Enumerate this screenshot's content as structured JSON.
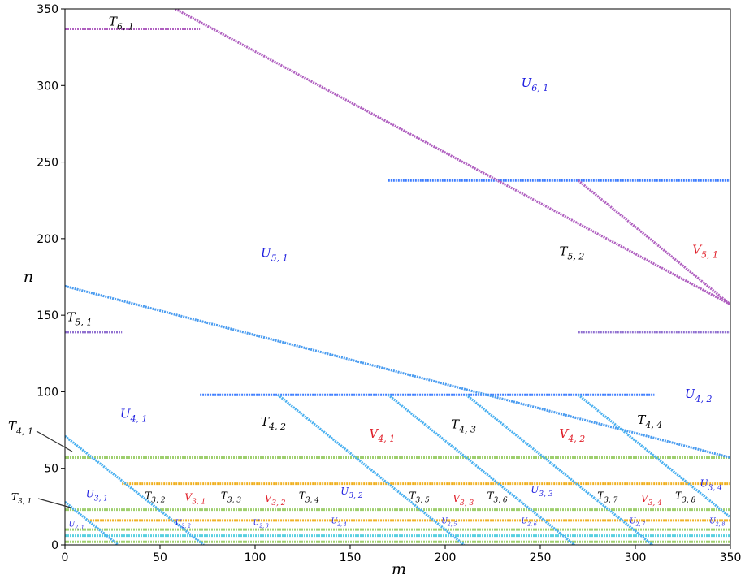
{
  "chart_data": {
    "type": "scatter",
    "xlabel": "m",
    "ylabel": "n",
    "xlim": [
      0,
      350
    ],
    "ylim": [
      0,
      350
    ],
    "x_ticks": [
      "0",
      "50",
      "100",
      "150",
      "200",
      "250",
      "300",
      "350"
    ],
    "y_ticks": [
      "0",
      "50",
      "100",
      "150",
      "200",
      "250",
      "300",
      "350"
    ],
    "colors": {
      "black_label": "#000000",
      "U_label": "#1f1fe0",
      "V_label": "#e0202a",
      "line_blue": "#3d7dff",
      "line_orange": "#f0b020",
      "line_green": "#9fcf6f",
      "line_cyan": "#5ad0e0",
      "line_purple": "#b060c0",
      "line_red": "#e05050"
    },
    "horizontal_segments": [
      {
        "y": 337,
        "x": [
          0,
          71
        ],
        "color": "#b060c0"
      },
      {
        "y": 238,
        "x": [
          170,
          350
        ],
        "color": "#3d7dff"
      },
      {
        "y": 139,
        "x": [
          0,
          30
        ],
        "color": "#9070d0"
      },
      {
        "y": 139,
        "x": [
          270,
          350
        ],
        "color": "#9070d0"
      },
      {
        "y": 98,
        "x": [
          71,
          310
        ],
        "color": "#3d7dff"
      },
      {
        "y": 57,
        "x": [
          0,
          350
        ],
        "color": "#9fcf6f"
      },
      {
        "y": 40,
        "x": [
          30,
          350
        ],
        "color": "#f0b020"
      },
      {
        "y": 23,
        "x": [
          0,
          350
        ],
        "color": "#9fcf6f"
      },
      {
        "y": 16,
        "x": [
          12,
          350
        ],
        "color": "#f0b020"
      },
      {
        "y": 10,
        "x": [
          0,
          350
        ],
        "color": "#9fcf6f"
      },
      {
        "y": 6,
        "x": [
          0,
          350
        ],
        "color": "#5ad0e0"
      },
      {
        "y": 2,
        "x": [
          0,
          350
        ],
        "color": "#9fcf6f"
      }
    ],
    "diagonal_segments": [
      {
        "from": [
          58,
          350
        ],
        "to": [
          350,
          157
        ],
        "color": "#b060c0"
      },
      {
        "from": [
          270,
          238
        ],
        "to": [
          350,
          157
        ],
        "color": "#b060c0"
      },
      {
        "from": [
          0,
          169
        ],
        "to": [
          350,
          57
        ],
        "color": "#4a9cf0"
      },
      {
        "from": [
          0,
          71
        ],
        "to": [
          73,
          0
        ],
        "color": "#4ab0f0"
      },
      {
        "from": [
          112,
          98
        ],
        "to": [
          210,
          0
        ],
        "color": "#4ab0f0"
      },
      {
        "from": [
          170,
          98
        ],
        "to": [
          268,
          0
        ],
        "color": "#4ab0f0"
      },
      {
        "from": [
          211,
          98
        ],
        "to": [
          309,
          0
        ],
        "color": "#4ab0f0"
      },
      {
        "from": [
          270,
          98
        ],
        "to": [
          350,
          18
        ],
        "color": "#4ab0f0"
      },
      {
        "from": [
          0,
          28
        ],
        "to": [
          28,
          0
        ],
        "color": "#4ab0f0"
      }
    ],
    "annotations": [
      {
        "text": "T",
        "sub": "6, 1",
        "x": 23,
        "y": 339,
        "color": "black",
        "size": 15
      },
      {
        "text": "U",
        "sub": "6, 1",
        "x": 240,
        "y": 299,
        "color": "U",
        "size": 15
      },
      {
        "text": "U",
        "sub": "5, 1",
        "x": 103,
        "y": 188,
        "color": "U",
        "size": 15
      },
      {
        "text": "T",
        "sub": "5, 2",
        "x": 260,
        "y": 189,
        "color": "black",
        "size": 15
      },
      {
        "text": "V",
        "sub": "5, 1",
        "x": 330,
        "y": 190,
        "color": "V",
        "size": 15
      },
      {
        "text": "T",
        "sub": "5, 1",
        "x": 1,
        "y": 146,
        "color": "black",
        "size": 15
      },
      {
        "text": "U",
        "sub": "4, 1",
        "x": 29,
        "y": 83,
        "color": "U",
        "size": 15
      },
      {
        "text": "U",
        "sub": "4, 2",
        "x": 326,
        "y": 96,
        "color": "U",
        "size": 15
      },
      {
        "text": "T",
        "sub": "4, 2",
        "x": 103,
        "y": 78,
        "color": "black",
        "size": 15
      },
      {
        "text": "V",
        "sub": "4, 1",
        "x": 160,
        "y": 70,
        "color": "V",
        "size": 15
      },
      {
        "text": "T",
        "sub": "4, 3",
        "x": 203,
        "y": 76,
        "color": "black",
        "size": 15
      },
      {
        "text": "V",
        "sub": "4, 2",
        "x": 260,
        "y": 70,
        "color": "V",
        "size": 15
      },
      {
        "text": "T",
        "sub": "4, 4",
        "x": 301,
        "y": 79,
        "color": "black",
        "size": 15
      },
      {
        "text": "U",
        "sub": "3, 1",
        "x": 11,
        "y": 31,
        "color": "U",
        "size": 12
      },
      {
        "text": "T",
        "sub": "3, 2",
        "x": 42,
        "y": 30,
        "color": "black",
        "size": 12
      },
      {
        "text": "V",
        "sub": "3, 1",
        "x": 63,
        "y": 29,
        "color": "V",
        "size": 12
      },
      {
        "text": "T",
        "sub": "3, 3",
        "x": 82,
        "y": 30,
        "color": "black",
        "size": 12
      },
      {
        "text": "V",
        "sub": "3, 2",
        "x": 105,
        "y": 28,
        "color": "V",
        "size": 12
      },
      {
        "text": "T",
        "sub": "3, 4",
        "x": 123,
        "y": 30,
        "color": "black",
        "size": 12
      },
      {
        "text": "U",
        "sub": "3, 2",
        "x": 145,
        "y": 33,
        "color": "U",
        "size": 12
      },
      {
        "text": "T",
        "sub": "3, 5",
        "x": 181,
        "y": 30,
        "color": "black",
        "size": 12
      },
      {
        "text": "V",
        "sub": "3, 3",
        "x": 204,
        "y": 28,
        "color": "V",
        "size": 12
      },
      {
        "text": "T",
        "sub": "3, 6",
        "x": 222,
        "y": 30,
        "color": "black",
        "size": 12
      },
      {
        "text": "U",
        "sub": "3, 3",
        "x": 245,
        "y": 34,
        "color": "U",
        "size": 12
      },
      {
        "text": "T",
        "sub": "3, 7",
        "x": 280,
        "y": 30,
        "color": "black",
        "size": 12
      },
      {
        "text": "V",
        "sub": "3, 4",
        "x": 303,
        "y": 28,
        "color": "V",
        "size": 12
      },
      {
        "text": "T",
        "sub": "3, 8",
        "x": 321,
        "y": 30,
        "color": "black",
        "size": 12
      },
      {
        "text": "U",
        "sub": "3, 4",
        "x": 334,
        "y": 38,
        "color": "U",
        "size": 12
      },
      {
        "text": "U",
        "sub": "2, 1",
        "x": 2,
        "y": 12,
        "color": "U",
        "size": 9
      },
      {
        "text": "U",
        "sub": "2, 2",
        "x": 58,
        "y": 13,
        "color": "U",
        "size": 9
      },
      {
        "text": "U",
        "sub": "2, 3",
        "x": 99,
        "y": 13,
        "color": "U",
        "size": 9
      },
      {
        "text": "U",
        "sub": "2, 4",
        "x": 140,
        "y": 14,
        "color": "U",
        "size": 9
      },
      {
        "text": "U",
        "sub": "2, 5",
        "x": 198,
        "y": 14,
        "color": "U",
        "size": 9
      },
      {
        "text": "U",
        "sub": "2, 6",
        "x": 240,
        "y": 14,
        "color": "U",
        "size": 9
      },
      {
        "text": "U",
        "sub": "2, 7",
        "x": 297,
        "y": 14,
        "color": "U",
        "size": 9
      },
      {
        "text": "U",
        "sub": "2, 8",
        "x": 339,
        "y": 14,
        "color": "U",
        "size": 9
      }
    ],
    "outside_labels": [
      {
        "text": "T",
        "sub": "4, 1",
        "color": "black",
        "size": 15
      },
      {
        "text": "T",
        "sub": "3, 1",
        "color": "black",
        "size": 12
      }
    ]
  }
}
